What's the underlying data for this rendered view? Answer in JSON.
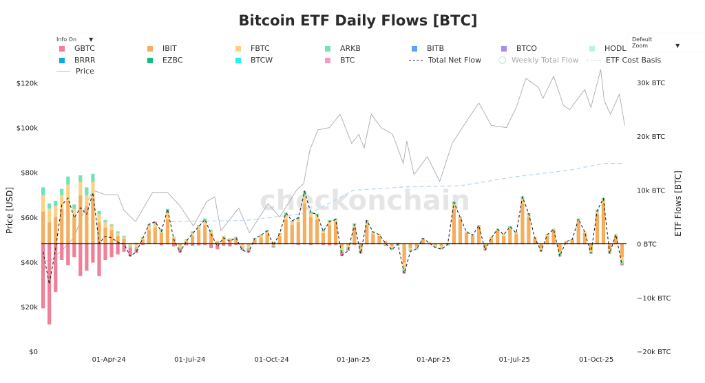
{
  "title": "Bitcoin ETF Daily Flows [BTC]",
  "controls": {
    "info": "Info On",
    "zoom": "Default Zoom",
    "arrow": "▼"
  },
  "watermark": "checkonchain",
  "legend": [
    {
      "label": "GBTC",
      "type": "box",
      "color": "#f07f98"
    },
    {
      "label": "IBIT",
      "type": "box",
      "color": "#f4ae5d"
    },
    {
      "label": "FBTC",
      "type": "box",
      "color": "#fbd283"
    },
    {
      "label": "ARKB",
      "type": "box",
      "color": "#72e2b8"
    },
    {
      "label": "BITB",
      "type": "box",
      "color": "#5f9ff5"
    },
    {
      "label": "BTCO",
      "type": "box",
      "color": "#a58cf8"
    },
    {
      "label": "HODL",
      "type": "box",
      "color": "#bff2de"
    },
    {
      "label": "BRRR",
      "type": "box",
      "color": "#12a6ea"
    },
    {
      "label": "EZBC",
      "type": "box",
      "color": "#12bd84"
    },
    {
      "label": "BTCW",
      "type": "box",
      "color": "#22f3f3"
    },
    {
      "label": "BTC",
      "type": "box",
      "color": "#f79cc4"
    },
    {
      "label": "Total Net Flow",
      "type": "dash",
      "color": "#222222"
    },
    {
      "label": "Weekly Total Flow",
      "type": "circle",
      "color": "#b8ecd8"
    },
    {
      "label": "ETF Cost Basis",
      "type": "dash",
      "color": "#b9d6f5"
    },
    {
      "label": "Price",
      "type": "line",
      "color": "#bbbbbb"
    }
  ],
  "chart_data": {
    "type": "bar",
    "title": "Bitcoin ETF Daily Flows [BTC]",
    "xlabel": "",
    "ylabel_left": "Price [USD]",
    "ylabel_right": "ETF Flows [BTC]",
    "xlim": [
      "2024-01-16",
      "2025-11-04"
    ],
    "ylim_left": [
      0,
      126000
    ],
    "ylim_right": [
      -20000,
      32400
    ],
    "x_ticks": [
      {
        "date": "2024-04-01",
        "label": "01-Apr-24"
      },
      {
        "date": "2024-07-01",
        "label": "01-Jul-24"
      },
      {
        "date": "2024-10-01",
        "label": "01-Oct-24"
      },
      {
        "date": "2025-01-01",
        "label": "01-Jan-25"
      },
      {
        "date": "2025-04-01",
        "label": "01-Apr-25"
      },
      {
        "date": "2025-07-01",
        "label": "01-Jul-25"
      },
      {
        "date": "2025-10-01",
        "label": "01-Oct-25"
      }
    ],
    "y_ticks_left": [
      {
        "value": 0,
        "label": "$0"
      },
      {
        "value": 20000,
        "label": "$20k"
      },
      {
        "value": 40000,
        "label": "$40k"
      },
      {
        "value": 60000,
        "label": "$60k"
      },
      {
        "value": 80000,
        "label": "$80k"
      },
      {
        "value": 100000,
        "label": "$100k"
      },
      {
        "value": 120000,
        "label": "$120k"
      }
    ],
    "y_ticks_right": [
      {
        "value": -20000,
        "label": "−20k BTC"
      },
      {
        "value": -10000,
        "label": "−10k BTC"
      },
      {
        "value": 0,
        "label": "0 BTC"
      },
      {
        "value": 10000,
        "label": "10k BTC"
      },
      {
        "value": 20000,
        "label": "20k BTC"
      },
      {
        "value": 30000,
        "label": "30k BTC"
      }
    ],
    "flow_start": "2024-01-18",
    "flow_step_days": 7,
    "flow_series": [
      {
        "name": "IBIT",
        "color": "#f4ae5d",
        "values": [
          6000,
          4000,
          5000,
          6500,
          8000,
          5000,
          9000,
          7000,
          8500,
          4000,
          3000,
          2500,
          1500,
          1000,
          0,
          200,
          800,
          2500,
          3000,
          2000,
          4500,
          1000,
          -300,
          500,
          1500,
          2500,
          3500,
          2000,
          500,
          1200,
          800,
          1000,
          -200,
          -300,
          800,
          1200,
          1800,
          400,
          1500,
          4500,
          3500,
          4000,
          7500,
          5000,
          4500,
          2000,
          3500,
          4000,
          -500,
          -300,
          3000,
          -800,
          3500,
          1800,
          1500,
          500,
          -500,
          200,
          -3500,
          -800,
          -500,
          800,
          200,
          -300,
          -400,
          200,
          6500,
          4500,
          2000,
          1500,
          3000,
          -600,
          1000,
          2500,
          1500,
          2800,
          1800,
          7500,
          5000,
          1000,
          -800,
          1500,
          2500,
          -1500,
          400,
          800,
          4000,
          2000,
          -1200,
          5500,
          7500,
          -1000,
          1500,
          -2500
        ]
      },
      {
        "name": "FBTC",
        "color": "#fbd283",
        "values": [
          3000,
          2500,
          2000,
          2500,
          3000,
          1500,
          2500,
          2000,
          3000,
          1500,
          1000,
          800,
          500,
          300,
          -500,
          -600,
          300,
          800,
          600,
          400,
          1500,
          200,
          -400,
          200,
          500,
          700,
          800,
          400,
          -200,
          200,
          100,
          200,
          -400,
          -500,
          200,
          300,
          400,
          -300,
          300,
          800,
          500,
          600,
          1500,
          600,
          700,
          300,
          600,
          400,
          -700,
          -400,
          500,
          -400,
          600,
          300,
          200,
          -200,
          -300,
          -100,
          -1200,
          -300,
          -200,
          200,
          100,
          -200,
          -300,
          -100,
          800,
          300,
          200,
          100,
          300,
          -300,
          100,
          200,
          200,
          300,
          200,
          800,
          400,
          100,
          -300,
          200,
          200,
          -400,
          100,
          100,
          400,
          200,
          -300,
          500,
          600,
          -400,
          200,
          -800
        ]
      },
      {
        "name": "ARKB",
        "color": "#72e2b8",
        "values": [
          1500,
          1000,
          1000,
          1200,
          1500,
          800,
          1200,
          1500,
          1500,
          600,
          400,
          300,
          300,
          200,
          -300,
          -300,
          100,
          300,
          300,
          200,
          500,
          100,
          -200,
          100,
          300,
          300,
          400,
          200,
          -100,
          100,
          100,
          100,
          -300,
          -300,
          100,
          200,
          300,
          -200,
          200,
          500,
          300,
          400,
          800,
          400,
          400,
          200,
          300,
          300,
          -400,
          -300,
          300,
          -300,
          300,
          200,
          100,
          -100,
          -200,
          -100,
          -600,
          -200,
          -200,
          100,
          0,
          -100,
          -200,
          -100,
          500,
          200,
          100,
          100,
          200,
          -200,
          100,
          100,
          100,
          200,
          100,
          500,
          300,
          100,
          -200,
          100,
          100,
          -300,
          0,
          0,
          300,
          100,
          -200,
          300,
          400,
          -300,
          100,
          -500
        ]
      },
      {
        "name": "GBTC",
        "color": "#f07f98",
        "values": [
          -12000,
          -15000,
          -9000,
          -3000,
          -4000,
          -2500,
          -6000,
          -5000,
          -3500,
          -6000,
          -3000,
          -2500,
          -2000,
          -1500,
          -1500,
          -800,
          -200,
          0,
          200,
          -300,
          -100,
          -500,
          -700,
          -300,
          -400,
          -300,
          -200,
          -800,
          -700,
          -400,
          -500,
          -200,
          -300,
          -500,
          -100,
          -100,
          -100,
          -200,
          -100,
          -100,
          0,
          -200,
          -100,
          -200,
          -100,
          -200,
          -300,
          -200,
          -600,
          -300,
          -200,
          -300,
          -100,
          -100,
          -100,
          -100,
          -100,
          -100,
          -200,
          -100,
          -100,
          -100,
          -100,
          -100,
          -100,
          -100,
          -100,
          -100,
          -100,
          -100,
          -100,
          -100,
          -100,
          -100,
          -100,
          -100,
          -100,
          -100,
          -100,
          -100,
          -100,
          -100,
          -100,
          -100,
          -100,
          -100,
          -100,
          -100,
          -100,
          -100,
          -100,
          -100,
          -100,
          -200
        ]
      }
    ],
    "price": {
      "name": "Price",
      "color": "#aaaaaa",
      "points": [
        [
          "2024-01-18",
          41000
        ],
        [
          "2024-01-25",
          40000
        ],
        [
          "2024-02-08",
          45000
        ],
        [
          "2024-02-22",
          51000
        ],
        [
          "2024-03-07",
          66000
        ],
        [
          "2024-03-14",
          72000
        ],
        [
          "2024-03-28",
          70000
        ],
        [
          "2024-04-11",
          70000
        ],
        [
          "2024-04-18",
          63000
        ],
        [
          "2024-05-01",
          58000
        ],
        [
          "2024-05-20",
          71000
        ],
        [
          "2024-06-06",
          71000
        ],
        [
          "2024-06-20",
          65000
        ],
        [
          "2024-07-05",
          56000
        ],
        [
          "2024-07-20",
          67000
        ],
        [
          "2024-07-29",
          69000
        ],
        [
          "2024-08-05",
          54000
        ],
        [
          "2024-08-25",
          64000
        ],
        [
          "2024-09-06",
          53000
        ],
        [
          "2024-09-27",
          66000
        ],
        [
          "2024-10-10",
          60000
        ],
        [
          "2024-10-29",
          72000
        ],
        [
          "2024-11-06",
          75000
        ],
        [
          "2024-11-13",
          90000
        ],
        [
          "2024-11-22",
          99000
        ],
        [
          "2024-12-05",
          100000
        ],
        [
          "2024-12-17",
          106000
        ],
        [
          "2024-12-30",
          93000
        ],
        [
          "2025-01-07",
          97000
        ],
        [
          "2025-01-13",
          91000
        ],
        [
          "2025-01-21",
          106000
        ],
        [
          "2025-02-01",
          100000
        ],
        [
          "2025-02-14",
          97000
        ],
        [
          "2025-02-26",
          84000
        ],
        [
          "2025-03-02",
          94000
        ],
        [
          "2025-03-10",
          79000
        ],
        [
          "2025-03-25",
          87000
        ],
        [
          "2025-04-08",
          76000
        ],
        [
          "2025-04-22",
          93000
        ],
        [
          "2025-05-10",
          104000
        ],
        [
          "2025-05-22",
          111000
        ],
        [
          "2025-06-05",
          101000
        ],
        [
          "2025-06-22",
          100000
        ],
        [
          "2025-07-03",
          109000
        ],
        [
          "2025-07-14",
          122000
        ],
        [
          "2025-07-28",
          118000
        ],
        [
          "2025-08-02",
          113000
        ],
        [
          "2025-08-14",
          123000
        ],
        [
          "2025-08-25",
          110000
        ],
        [
          "2025-09-01",
          108000
        ],
        [
          "2025-09-18",
          117000
        ],
        [
          "2025-09-25",
          109000
        ],
        [
          "2025-10-06",
          126000
        ],
        [
          "2025-10-10",
          112000
        ],
        [
          "2025-10-17",
          106000
        ],
        [
          "2025-10-27",
          115000
        ],
        [
          "2025-11-02",
          101000
        ]
      ]
    },
    "cost_basis": {
      "name": "ETF Cost Basis",
      "color": "#b9d6f5",
      "points": [
        [
          "2024-06-10",
          58000
        ],
        [
          "2024-09-01",
          58500
        ],
        [
          "2024-11-15",
          62000
        ],
        [
          "2025-01-01",
          72000
        ],
        [
          "2025-03-01",
          73500
        ],
        [
          "2025-05-01",
          74000
        ],
        [
          "2025-07-01",
          78000
        ],
        [
          "2025-09-01",
          81000
        ],
        [
          "2025-10-10",
          84000
        ],
        [
          "2025-11-02",
          84000
        ]
      ]
    },
    "net_flow": {
      "name": "Total Net Flow",
      "color": "#222222"
    },
    "grid": false,
    "legend_position": "top"
  }
}
